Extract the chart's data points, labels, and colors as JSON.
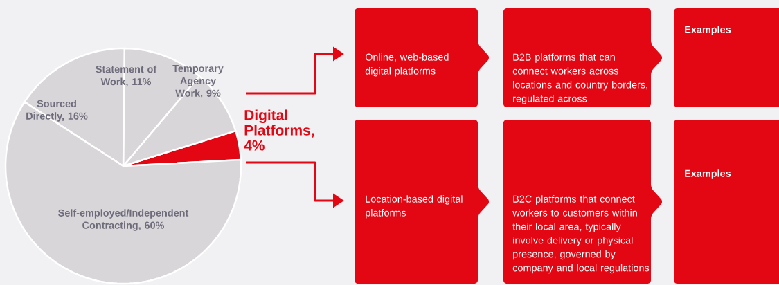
{
  "chart_data": [
    {
      "type": "pie",
      "categories": [
        "Digital Platforms, 4%",
        "Temporary Agency Work, 9%",
        "Statement of Work, 11%",
        "Sourced Directly, 16%",
        "Self-employed/Independent Contracting, 60%"
      ],
      "values": [
        4,
        9,
        11,
        16,
        60
      ],
      "colors": [
        "#e30613",
        "#d9d6da",
        "#d9d6da",
        "#d9d6da",
        "#d9d6da"
      ]
    },
    {
      "type": "other",
      "annotations": [
        "Online, web-based digital platforms",
        "B2B platforms that can connect workers across locations and country borders, regulated across",
        "Examples",
        "Location-based digital platforms",
        "B2C platforms that connect workers to customers within their local area, typically involve delivery or physical presence, governed by company and local regulations",
        "Examples"
      ]
    }
  ]
}
